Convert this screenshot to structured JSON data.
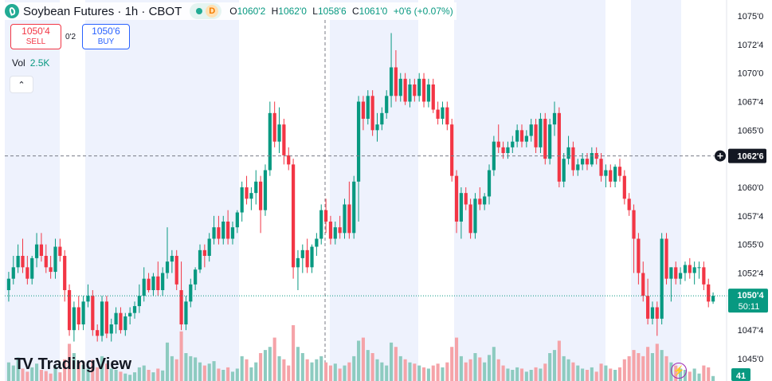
{
  "header": {
    "title": "Soybean Futures · 1h · CBOT",
    "market_badge": "D",
    "ohlc": {
      "o_label": "O",
      "o": "1060'2",
      "h_label": "H",
      "h": "1062'0",
      "l_label": "L",
      "l": "1058'6",
      "c_label": "C",
      "c": "1061'0",
      "change": "+0'6 (+0.07%)"
    }
  },
  "trade": {
    "sell_price": "1050'4",
    "sell_label": "SELL",
    "spread": "0'2",
    "buy_price": "1050'6",
    "buy_label": "BUY"
  },
  "volume": {
    "label": "Vol",
    "value": "2.5K"
  },
  "collapse_icon": "chevron-up-icon",
  "brand": {
    "logo": "TV",
    "name": "TradingView"
  },
  "colors": {
    "up": "#089981",
    "down": "#f23645",
    "up_vol": "#8dcbc0",
    "down_vol": "#f5a3a8",
    "session": "#eef2fd"
  },
  "chart_data": {
    "type": "candlestick",
    "symbol": "Soybean Futures",
    "interval": "1h",
    "exchange": "CBOT",
    "y_ticks": [
      "1075'0",
      "1072'4",
      "1070'0",
      "1067'4",
      "1065'0",
      "1062'6",
      "1060'0",
      "1057'4",
      "1055'0",
      "1052'4",
      "1050'4",
      "1047'4",
      "1045'0"
    ],
    "ylim": [
      1044.0,
      1076.6
    ],
    "crosshair_price": "1062'6",
    "last_price": "1050'4",
    "countdown": "50:11",
    "volume_axis_value": "41",
    "candles": [
      [
        1051.0,
        1052.6,
        1050.0,
        1052.0,
        30
      ],
      [
        1052.0,
        1054.0,
        1051.5,
        1053.0,
        25
      ],
      [
        1053.0,
        1055.0,
        1052.5,
        1054.0,
        38
      ],
      [
        1054.0,
        1055.5,
        1052.5,
        1053.0,
        20
      ],
      [
        1053.0,
        1054.0,
        1051.5,
        1052.0,
        15
      ],
      [
        1052.0,
        1054.0,
        1051.5,
        1053.8,
        22
      ],
      [
        1053.8,
        1056.0,
        1053.0,
        1055.0,
        28
      ],
      [
        1055.0,
        1056.0,
        1053.5,
        1054.0,
        18
      ],
      [
        1054.0,
        1055.0,
        1052.5,
        1053.0,
        16
      ],
      [
        1053.0,
        1054.0,
        1052.0,
        1052.6,
        12
      ],
      [
        1052.6,
        1055.5,
        1052.0,
        1054.8,
        24
      ],
      [
        1054.8,
        1055.5,
        1053.5,
        1054.0,
        14
      ],
      [
        1054.0,
        1054.5,
        1050.0,
        1051.0,
        35
      ],
      [
        1051.0,
        1051.5,
        1047.0,
        1047.5,
        60
      ],
      [
        1047.5,
        1050.0,
        1046.5,
        1049.5,
        45
      ],
      [
        1049.5,
        1050.5,
        1047.5,
        1048.0,
        30
      ],
      [
        1048.0,
        1050.5,
        1047.5,
        1050.0,
        26
      ],
      [
        1050.0,
        1051.5,
        1049.5,
        1050.5,
        20
      ],
      [
        1050.5,
        1051.0,
        1047.0,
        1047.5,
        34
      ],
      [
        1047.5,
        1048.0,
        1046.5,
        1047.0,
        22
      ],
      [
        1047.0,
        1050.5,
        1046.5,
        1050.0,
        40
      ],
      [
        1050.0,
        1050.5,
        1046.8,
        1047.2,
        28
      ],
      [
        1047.2,
        1048.5,
        1046.5,
        1048.0,
        20
      ],
      [
        1048.0,
        1049.5,
        1047.2,
        1049.0,
        18
      ],
      [
        1049.0,
        1049.5,
        1047.2,
        1047.5,
        15
      ],
      [
        1047.5,
        1049.0,
        1047.0,
        1048.7,
        12
      ],
      [
        1048.7,
        1049.5,
        1048.0,
        1049.0,
        10
      ],
      [
        1049.0,
        1050.0,
        1048.5,
        1049.6,
        14
      ],
      [
        1049.6,
        1051.5,
        1049.0,
        1050.5,
        22
      ],
      [
        1050.5,
        1053.0,
        1050.0,
        1052.0,
        25
      ],
      [
        1052.0,
        1052.5,
        1050.8,
        1051.0,
        18
      ],
      [
        1051.0,
        1052.5,
        1050.5,
        1052.2,
        14
      ],
      [
        1052.2,
        1053.5,
        1050.5,
        1051.0,
        20
      ],
      [
        1051.0,
        1053.0,
        1050.5,
        1052.5,
        17
      ],
      [
        1052.5,
        1056.5,
        1052.0,
        1053.5,
        62
      ],
      [
        1053.5,
        1054.5,
        1052.5,
        1054.0,
        40
      ],
      [
        1054.0,
        1054.5,
        1051.0,
        1051.5,
        35
      ],
      [
        1051.0,
        1053.5,
        1047.5,
        1048.0,
        80
      ],
      [
        1048.0,
        1050.5,
        1047.5,
        1050.0,
        45
      ],
      [
        1050.0,
        1052.0,
        1049.5,
        1051.5,
        40
      ],
      [
        1051.5,
        1053.0,
        1051.0,
        1052.8,
        38
      ],
      [
        1052.8,
        1055.0,
        1052.5,
        1054.5,
        30
      ],
      [
        1054.5,
        1055.0,
        1053.0,
        1054.0,
        25
      ],
      [
        1054.0,
        1056.0,
        1053.5,
        1055.5,
        28
      ],
      [
        1055.5,
        1057.5,
        1055.0,
        1056.5,
        32
      ],
      [
        1056.5,
        1057.5,
        1055.0,
        1055.5,
        20
      ],
      [
        1055.5,
        1057.5,
        1055.0,
        1057.0,
        18
      ],
      [
        1057.0,
        1058.0,
        1055.0,
        1055.5,
        22
      ],
      [
        1055.5,
        1057.0,
        1055.0,
        1056.5,
        15
      ],
      [
        1056.5,
        1058.0,
        1056.0,
        1057.8,
        20
      ],
      [
        1057.8,
        1060.5,
        1057.0,
        1060.0,
        40
      ],
      [
        1060.0,
        1061.0,
        1058.5,
        1059.0,
        35
      ],
      [
        1059.0,
        1060.0,
        1058.0,
        1059.5,
        22
      ],
      [
        1059.5,
        1061.5,
        1058.5,
        1060.5,
        30
      ],
      [
        1060.5,
        1061.0,
        1056.0,
        1058.0,
        45
      ],
      [
        1058.0,
        1062.0,
        1057.5,
        1061.5,
        50
      ],
      [
        1061.5,
        1067.5,
        1061.0,
        1066.5,
        55
      ],
      [
        1066.5,
        1067.5,
        1063.5,
        1064.0,
        70
      ],
      [
        1064.0,
        1067.0,
        1063.0,
        1065.5,
        40
      ],
      [
        1065.5,
        1066.0,
        1062.0,
        1062.8,
        35
      ],
      [
        1062.8,
        1063.5,
        1061.5,
        1062.0,
        25
      ],
      [
        1062.0,
        1062.5,
        1052.0,
        1053.0,
        90
      ],
      [
        1053.0,
        1054.5,
        1051.0,
        1053.8,
        55
      ],
      [
        1053.8,
        1055.0,
        1052.5,
        1054.5,
        45
      ],
      [
        1054.5,
        1055.5,
        1052.5,
        1053.0,
        35
      ],
      [
        1053.0,
        1055.0,
        1052.5,
        1054.8,
        30
      ],
      [
        1054.8,
        1056.0,
        1054.0,
        1055.5,
        35
      ],
      [
        1055.5,
        1058.5,
        1055.0,
        1058.0,
        40
      ],
      [
        1058.0,
        1059.0,
        1056.0,
        1057.0,
        30
      ],
      [
        1057.0,
        1057.5,
        1055.0,
        1055.5,
        25
      ],
      [
        1055.5,
        1057.0,
        1055.0,
        1056.5,
        28
      ],
      [
        1056.5,
        1057.5,
        1055.5,
        1056.0,
        20
      ],
      [
        1056.0,
        1059.0,
        1055.5,
        1058.5,
        25
      ],
      [
        1058.5,
        1060.5,
        1055.5,
        1056.0,
        30
      ],
      [
        1056.0,
        1061.0,
        1055.5,
        1060.5,
        40
      ],
      [
        1060.5,
        1068.0,
        1057.0,
        1067.5,
        65
      ],
      [
        1067.5,
        1068.0,
        1065.0,
        1066.0,
        70
      ],
      [
        1066.0,
        1068.5,
        1065.5,
        1068.0,
        50
      ],
      [
        1068.0,
        1068.5,
        1064.5,
        1065.0,
        45
      ],
      [
        1065.0,
        1066.5,
        1064.0,
        1065.5,
        35
      ],
      [
        1065.5,
        1067.0,
        1065.0,
        1066.5,
        30
      ],
      [
        1066.5,
        1068.5,
        1066.0,
        1068.0,
        25
      ],
      [
        1068.0,
        1073.5,
        1067.0,
        1070.5,
        62
      ],
      [
        1070.5,
        1072.0,
        1067.5,
        1068.0,
        55
      ],
      [
        1068.0,
        1070.0,
        1067.5,
        1069.5,
        40
      ],
      [
        1069.5,
        1070.0,
        1067.2,
        1067.5,
        35
      ],
      [
        1067.5,
        1069.5,
        1067.0,
        1069.0,
        30
      ],
      [
        1069.0,
        1069.5,
        1067.5,
        1068.0,
        28
      ],
      [
        1068.0,
        1070.0,
        1067.5,
        1069.5,
        25
      ],
      [
        1069.5,
        1070.0,
        1067.0,
        1067.5,
        22
      ],
      [
        1067.5,
        1069.5,
        1067.0,
        1069.0,
        20
      ],
      [
        1069.0,
        1069.5,
        1066.5,
        1066.8,
        25
      ],
      [
        1066.8,
        1067.5,
        1065.5,
        1066.0,
        28
      ],
      [
        1066.0,
        1067.5,
        1065.5,
        1067.0,
        22
      ],
      [
        1067.0,
        1067.5,
        1065.0,
        1065.5,
        30
      ],
      [
        1065.5,
        1066.0,
        1060.5,
        1061.0,
        55
      ],
      [
        1061.0,
        1061.5,
        1056.0,
        1057.0,
        70
      ],
      [
        1057.0,
        1060.0,
        1055.5,
        1059.5,
        40
      ],
      [
        1059.5,
        1060.0,
        1058.0,
        1058.5,
        30
      ],
      [
        1058.5,
        1059.0,
        1055.5,
        1056.0,
        35
      ],
      [
        1056.0,
        1059.5,
        1055.5,
        1059.0,
        45
      ],
      [
        1059.0,
        1060.0,
        1058.0,
        1058.5,
        38
      ],
      [
        1058.5,
        1059.5,
        1058.0,
        1059.2,
        30
      ],
      [
        1059.2,
        1062.0,
        1058.5,
        1061.5,
        42
      ],
      [
        1061.5,
        1064.5,
        1061.0,
        1064.0,
        55
      ],
      [
        1064.0,
        1065.5,
        1063.0,
        1063.5,
        35
      ],
      [
        1063.5,
        1064.0,
        1062.5,
        1063.0,
        25
      ],
      [
        1063.0,
        1064.0,
        1062.5,
        1063.5,
        20
      ],
      [
        1063.5,
        1064.5,
        1063.0,
        1064.0,
        18
      ],
      [
        1064.0,
        1065.5,
        1063.5,
        1065.0,
        22
      ],
      [
        1065.0,
        1065.5,
        1063.5,
        1064.0,
        20
      ],
      [
        1064.0,
        1065.0,
        1063.5,
        1064.5,
        15
      ],
      [
        1064.5,
        1066.0,
        1064.0,
        1065.5,
        18
      ],
      [
        1065.5,
        1066.0,
        1063.0,
        1063.5,
        22
      ],
      [
        1063.5,
        1066.5,
        1063.0,
        1066.0,
        20
      ],
      [
        1066.0,
        1066.5,
        1062.0,
        1062.5,
        28
      ],
      [
        1062.5,
        1066.0,
        1062.0,
        1065.5,
        45
      ],
      [
        1065.5,
        1067.5,
        1064.5,
        1066.5,
        50
      ],
      [
        1066.5,
        1067.0,
        1060.0,
        1060.5,
        65
      ],
      [
        1060.5,
        1063.0,
        1060.0,
        1062.5,
        40
      ],
      [
        1062.5,
        1064.5,
        1062.0,
        1063.5,
        35
      ],
      [
        1063.5,
        1064.0,
        1061.0,
        1061.5,
        30
      ],
      [
        1061.5,
        1062.5,
        1061.0,
        1062.0,
        25
      ],
      [
        1062.0,
        1063.0,
        1061.5,
        1062.5,
        20
      ],
      [
        1062.5,
        1063.0,
        1061.5,
        1062.0,
        18
      ],
      [
        1062.0,
        1063.5,
        1061.8,
        1063.0,
        22
      ],
      [
        1063.0,
        1063.5,
        1062.0,
        1062.5,
        15
      ],
      [
        1062.5,
        1063.0,
        1060.5,
        1061.0,
        28
      ],
      [
        1061.0,
        1062.0,
        1060.0,
        1061.5,
        25
      ],
      [
        1061.5,
        1062.0,
        1060.0,
        1060.5,
        20
      ],
      [
        1060.5,
        1062.0,
        1060.0,
        1061.8,
        18
      ],
      [
        1061.8,
        1062.5,
        1060.5,
        1061.0,
        22
      ],
      [
        1061.0,
        1061.5,
        1058.5,
        1059.0,
        35
      ],
      [
        1059.0,
        1059.5,
        1057.5,
        1058.0,
        40
      ],
      [
        1058.0,
        1058.5,
        1052.5,
        1055.5,
        50
      ],
      [
        1055.5,
        1056.0,
        1051.5,
        1052.5,
        45
      ],
      [
        1052.5,
        1053.5,
        1050.0,
        1050.5,
        40
      ],
      [
        1050.5,
        1052.0,
        1048.0,
        1048.5,
        55
      ],
      [
        1048.5,
        1050.0,
        1048.0,
        1049.5,
        45
      ],
      [
        1049.5,
        1050.0,
        1047.0,
        1048.5,
        60
      ],
      [
        1048.5,
        1056.0,
        1048.0,
        1055.5,
        50
      ],
      [
        1055.5,
        1056.0,
        1051.5,
        1052.0,
        40
      ],
      [
        1052.0,
        1053.0,
        1050.0,
        1053.0,
        30
      ],
      [
        1053.0,
        1053.5,
        1051.5,
        1052.0,
        25
      ],
      [
        1052.0,
        1053.0,
        1051.5,
        1052.5,
        20
      ],
      [
        1052.5,
        1053.5,
        1051.8,
        1053.2,
        18
      ],
      [
        1053.2,
        1053.8,
        1052.0,
        1052.5,
        15
      ],
      [
        1052.5,
        1053.5,
        1051.5,
        1053.0,
        20
      ],
      [
        1053.0,
        1053.5,
        1052.0,
        1053.0,
        12
      ],
      [
        1053.0,
        1053.5,
        1051.0,
        1051.5,
        25
      ],
      [
        1051.5,
        1052.0,
        1049.5,
        1050.0,
        22
      ],
      [
        1050.0,
        1050.8,
        1049.8,
        1050.5,
        8
      ]
    ]
  }
}
